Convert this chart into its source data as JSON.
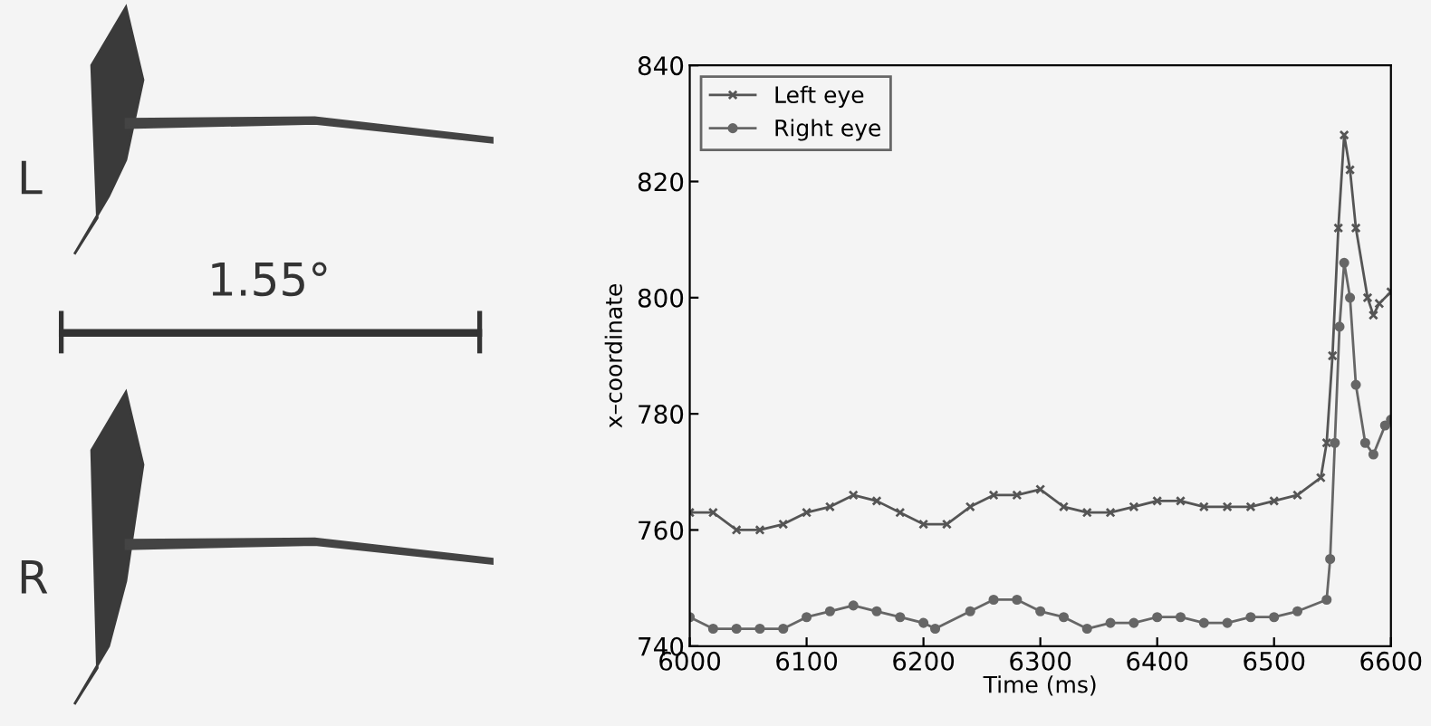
{
  "chart_data": [
    {
      "type": "other",
      "annotations": [
        "L",
        "1.55°",
        "R"
      ]
    },
    {
      "type": "line",
      "xlabel": "Time (ms)",
      "ylabel": "x–coordinate",
      "xlim": [
        6000,
        6600
      ],
      "ylim": [
        740,
        840
      ],
      "xticks": [
        6000,
        6100,
        6200,
        6300,
        6400,
        6500,
        6600
      ],
      "yticks": [
        740,
        760,
        780,
        800,
        820,
        840
      ],
      "grid": false,
      "legend": "top left",
      "series": [
        {
          "name": "Left eye",
          "color": "#555555",
          "marker": "cross",
          "x": [
            6000,
            6020,
            6040,
            6060,
            6080,
            6100,
            6120,
            6140,
            6160,
            6180,
            6200,
            6220,
            6240,
            6260,
            6280,
            6300,
            6320,
            6340,
            6360,
            6380,
            6400,
            6420,
            6440,
            6460,
            6480,
            6500,
            6520,
            6540,
            6545,
            6550,
            6555,
            6560,
            6565,
            6570,
            6580,
            6585,
            6590,
            6600
          ],
          "values": [
            763,
            763,
            760,
            760,
            761,
            763,
            764,
            766,
            765,
            763,
            761,
            761,
            764,
            766,
            766,
            767,
            764,
            763,
            763,
            764,
            765,
            765,
            764,
            764,
            764,
            765,
            766,
            769,
            775,
            790,
            812,
            828,
            822,
            812,
            800,
            797,
            799,
            801
          ]
        },
        {
          "name": "Right eye",
          "color": "#666666",
          "marker": "circle",
          "x": [
            6000,
            6020,
            6040,
            6060,
            6080,
            6100,
            6120,
            6140,
            6160,
            6180,
            6200,
            6210,
            6240,
            6260,
            6280,
            6300,
            6320,
            6340,
            6360,
            6380,
            6400,
            6420,
            6440,
            6460,
            6480,
            6500,
            6520,
            6545,
            6548,
            6552,
            6556,
            6560,
            6565,
            6570,
            6578,
            6585,
            6595,
            6600
          ],
          "values": [
            745,
            743,
            743,
            743,
            743,
            745,
            746,
            747,
            746,
            745,
            744,
            743,
            746,
            748,
            748,
            746,
            745,
            743,
            744,
            744,
            745,
            745,
            744,
            744,
            745,
            745,
            746,
            748,
            755,
            775,
            795,
            806,
            800,
            785,
            775,
            773,
            778,
            779
          ]
        }
      ]
    }
  ]
}
